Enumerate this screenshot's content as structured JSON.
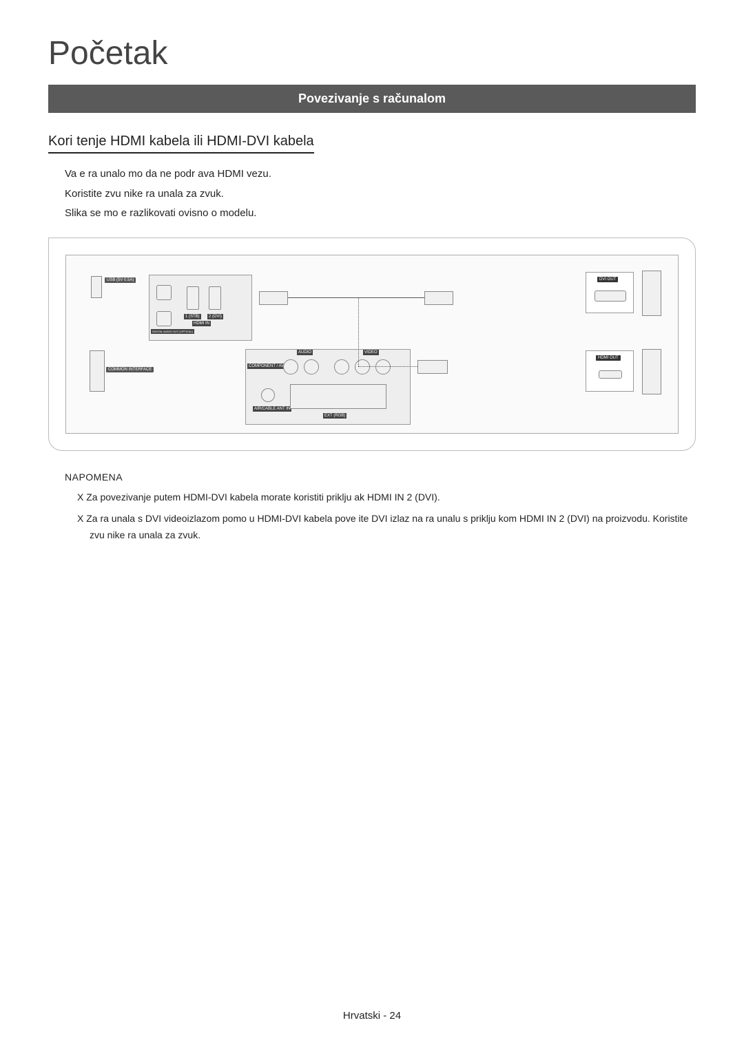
{
  "page": {
    "title": "Početak",
    "section_bar": "Povezivanje s računalom",
    "subheading": "Kori tenje HDMI kabela ili HDMI-DVI kabela",
    "body": "Va e ra unalo mo da ne podr ava HDMI vezu.\nKoristite zvu nike ra unala za zvuk.\nSlika se mo e razlikovati ovisno o modelu.",
    "note_heading": "NAPOMENA",
    "notes": [
      "X  Za povezivanje putem HDMI-DVI kabela morate koristiti priklju ak HDMI IN 2 (DVI).",
      "X  Za ra unala s DVI videoizlazom pomo u HDMI-DVI kabela pove ite DVI izlaz na ra unalu s priklju kom HDMI IN 2 (DVI) na proizvodu. Koristite zvu nike ra unala za zvuk."
    ],
    "footer": "Hrvatski - 24"
  },
  "diagram": {
    "labels": {
      "usb": "USB\n(5V 0.5A)",
      "hdmi_in": "HDMI IN",
      "hdmi_1": "1 (STB)",
      "hdmi_2": "2 (DVI)",
      "digital_audio": "DIGITAL\nAUDIO OUT\n(OPTICAL)",
      "common_interface": "COMMON\nINTERFACE",
      "component": "COMPONENT\n/ AV IN",
      "audio": "AUDIO",
      "video": "VIDEO",
      "ant_in": "AIR/CABLE\nANT IN",
      "ext_rgb": "EXT (RGB)",
      "dvi_out": "DVI OUT",
      "hdmi_out": "HDMI OUT"
    },
    "colors": {
      "bg": "#fafafa",
      "border": "#aaaaaa",
      "label_bg": "#555555",
      "port_bg": "#f0f0f0"
    }
  }
}
